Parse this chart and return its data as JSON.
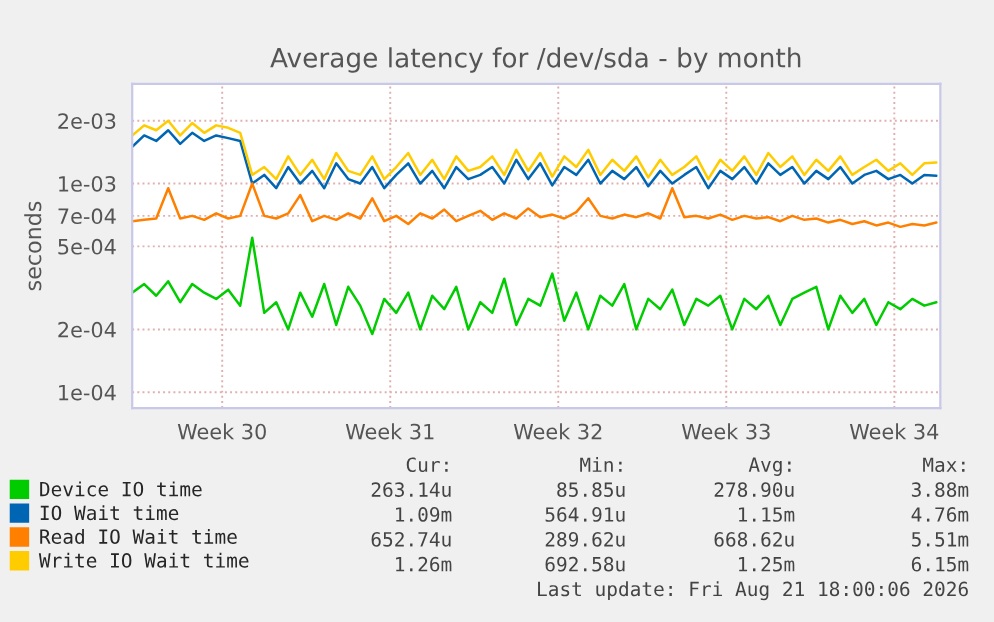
{
  "chart_data": {
    "type": "line",
    "title": "Average latency for /dev/sda - by month",
    "ylabel": "seconds",
    "log": "y",
    "grid": true,
    "legend": "bottom",
    "marker": "none",
    "line_style": "solid",
    "x": [
      "2026-07-19T06:00",
      "2026-07-19T18:00",
      "2026-07-20T06:00",
      "2026-07-20T18:00",
      "2026-07-21T06:00",
      "2026-07-21T18:00",
      "2026-07-22T06:00",
      "2026-07-22T18:00",
      "2026-07-23T06:00",
      "2026-07-23T18:00",
      "2026-07-24T06:00",
      "2026-07-24T18:00",
      "2026-07-25T06:00",
      "2026-07-25T18:00",
      "2026-07-26T06:00",
      "2026-07-26T18:00",
      "2026-07-27T06:00",
      "2026-07-27T18:00",
      "2026-07-28T06:00",
      "2026-07-28T18:00",
      "2026-07-29T06:00",
      "2026-07-29T18:00",
      "2026-07-30T06:00",
      "2026-07-30T18:00",
      "2026-07-31T06:00",
      "2026-07-31T18:00",
      "2026-08-01T06:00",
      "2026-08-01T18:00",
      "2026-08-02T06:00",
      "2026-08-02T18:00",
      "2026-08-03T06:00",
      "2026-08-03T18:00",
      "2026-08-04T06:00",
      "2026-08-04T18:00",
      "2026-08-05T06:00",
      "2026-08-05T18:00",
      "2026-08-06T06:00",
      "2026-08-06T18:00",
      "2026-08-07T06:00",
      "2026-08-07T18:00",
      "2026-08-08T06:00",
      "2026-08-08T18:00",
      "2026-08-09T06:00",
      "2026-08-09T18:00",
      "2026-08-10T06:00",
      "2026-08-10T18:00",
      "2026-08-11T06:00",
      "2026-08-11T18:00",
      "2026-08-12T06:00",
      "2026-08-12T18:00",
      "2026-08-13T06:00",
      "2026-08-13T18:00",
      "2026-08-14T06:00",
      "2026-08-14T18:00",
      "2026-08-15T06:00",
      "2026-08-15T18:00",
      "2026-08-16T06:00",
      "2026-08-16T18:00",
      "2026-08-17T06:00",
      "2026-08-17T18:00",
      "2026-08-18T06:00",
      "2026-08-18T18:00",
      "2026-08-19T06:00",
      "2026-08-19T18:00",
      "2026-08-20T06:00",
      "2026-08-20T18:00",
      "2026-08-21T06:00",
      "2026-08-21T18:00"
    ],
    "xlim": [
      "2026-07-19T06:00",
      "2026-08-21T22:00"
    ],
    "xticks": [
      {
        "value": "2026-07-23",
        "label": "Week 30"
      },
      {
        "value": "2026-07-30",
        "label": "Week 31"
      },
      {
        "value": "2026-08-06",
        "label": "Week 32"
      },
      {
        "value": "2026-08-13",
        "label": "Week 33"
      },
      {
        "value": "2026-08-20",
        "label": "Week 34"
      }
    ],
    "ylim": [
      8.4e-05,
      0.003
    ],
    "yticks": [
      {
        "value": 0.0001,
        "label": "1e-04"
      },
      {
        "value": 0.0002,
        "label": "2e-04"
      },
      {
        "value": 0.0005,
        "label": "5e-04"
      },
      {
        "value": 0.0007,
        "label": "7e-04"
      },
      {
        "value": 0.001,
        "label": "1e-03"
      },
      {
        "value": 0.002,
        "label": "2e-03"
      }
    ],
    "series": [
      {
        "name": "Device IO time",
        "color": "#00cc00",
        "values": [
          0.0003,
          0.00033,
          0.00029,
          0.00034,
          0.00027,
          0.00033,
          0.0003,
          0.00028,
          0.00031,
          0.00026,
          0.00055,
          0.00024,
          0.00027,
          0.0002,
          0.0003,
          0.00023,
          0.00033,
          0.00021,
          0.00032,
          0.00026,
          0.00019,
          0.00028,
          0.00024,
          0.0003,
          0.0002,
          0.00029,
          0.00025,
          0.00032,
          0.0002,
          0.00027,
          0.00024,
          0.00035,
          0.00021,
          0.00028,
          0.00026,
          0.00037,
          0.00022,
          0.0003,
          0.0002,
          0.00029,
          0.00026,
          0.00033,
          0.0002,
          0.00028,
          0.00025,
          0.00031,
          0.00021,
          0.00028,
          0.00026,
          0.00029,
          0.0002,
          0.00028,
          0.00025,
          0.00029,
          0.00021,
          0.00028,
          0.0003,
          0.00032,
          0.0002,
          0.00029,
          0.00024,
          0.00028,
          0.00021,
          0.00027,
          0.00025,
          0.00028,
          0.00026,
          0.00027
        ]
      },
      {
        "name": "IO Wait time",
        "color": "#0066b3",
        "values": [
          0.0015,
          0.0017,
          0.0016,
          0.0018,
          0.00155,
          0.00175,
          0.0016,
          0.0017,
          0.00165,
          0.0016,
          0.001,
          0.0011,
          0.00095,
          0.0012,
          0.001,
          0.00115,
          0.00095,
          0.00125,
          0.00105,
          0.001,
          0.0012,
          0.00095,
          0.0011,
          0.00125,
          0.001,
          0.00115,
          0.00095,
          0.0012,
          0.00105,
          0.0011,
          0.0012,
          0.001,
          0.0013,
          0.00105,
          0.00125,
          0.00098,
          0.0012,
          0.0011,
          0.0013,
          0.001,
          0.00115,
          0.00105,
          0.0012,
          0.00097,
          0.00115,
          0.001,
          0.0011,
          0.0012,
          0.00095,
          0.00115,
          0.00105,
          0.0012,
          0.001,
          0.00125,
          0.0011,
          0.0012,
          0.001,
          0.00115,
          0.00105,
          0.0012,
          0.001,
          0.0011,
          0.00115,
          0.00105,
          0.0011,
          0.001,
          0.0011,
          0.00109
        ]
      },
      {
        "name": "Read IO Wait time",
        "color": "#ff8000",
        "values": [
          0.00066,
          0.00067,
          0.00068,
          0.00095,
          0.00068,
          0.0007,
          0.00067,
          0.00072,
          0.00068,
          0.0007,
          0.001,
          0.0007,
          0.00068,
          0.00072,
          0.00088,
          0.00066,
          0.0007,
          0.00067,
          0.00072,
          0.00068,
          0.00085,
          0.00066,
          0.0007,
          0.00064,
          0.00072,
          0.00068,
          0.00075,
          0.00066,
          0.0007,
          0.00074,
          0.00067,
          0.00072,
          0.00068,
          0.00076,
          0.00069,
          0.00071,
          0.00068,
          0.00073,
          0.00085,
          0.0007,
          0.00068,
          0.00071,
          0.00069,
          0.00072,
          0.00068,
          0.00095,
          0.00069,
          0.0007,
          0.00068,
          0.00071,
          0.00067,
          0.0007,
          0.00068,
          0.00069,
          0.00066,
          0.0007,
          0.00067,
          0.00068,
          0.00065,
          0.00067,
          0.00064,
          0.00066,
          0.00063,
          0.00065,
          0.00062,
          0.00064,
          0.00063,
          0.00065
        ]
      },
      {
        "name": "Write IO Wait time",
        "color": "#ffcc00",
        "values": [
          0.0017,
          0.0019,
          0.0018,
          0.002,
          0.0017,
          0.00195,
          0.00175,
          0.0019,
          0.00185,
          0.00175,
          0.0011,
          0.0012,
          0.00105,
          0.00135,
          0.0011,
          0.0013,
          0.00105,
          0.0014,
          0.00115,
          0.0011,
          0.00135,
          0.00105,
          0.0012,
          0.0014,
          0.0011,
          0.0013,
          0.00105,
          0.00135,
          0.00115,
          0.0012,
          0.00135,
          0.0011,
          0.00145,
          0.00115,
          0.0014,
          0.00108,
          0.00135,
          0.0012,
          0.00145,
          0.0011,
          0.0013,
          0.00115,
          0.00135,
          0.00107,
          0.0013,
          0.0011,
          0.0012,
          0.00135,
          0.00105,
          0.0013,
          0.00115,
          0.00135,
          0.0011,
          0.0014,
          0.0012,
          0.00135,
          0.0011,
          0.0013,
          0.00115,
          0.00135,
          0.0011,
          0.0012,
          0.0013,
          0.00115,
          0.00125,
          0.0011,
          0.00125,
          0.00126
        ]
      }
    ],
    "annotations": [
      "Cur:",
      "Min:",
      "Avg:",
      "Max:",
      "263.14u",
      "85.85u",
      "278.90u",
      "3.88m",
      "1.09m",
      "564.91u",
      "1.15m",
      "4.76m",
      "652.74u",
      "289.62u",
      "668.62u",
      "5.51m",
      "1.26m",
      "692.58u",
      "1.25m",
      "6.15m",
      "Last update: Fri Aug 21 18:00:06 2026"
    ]
  }
}
